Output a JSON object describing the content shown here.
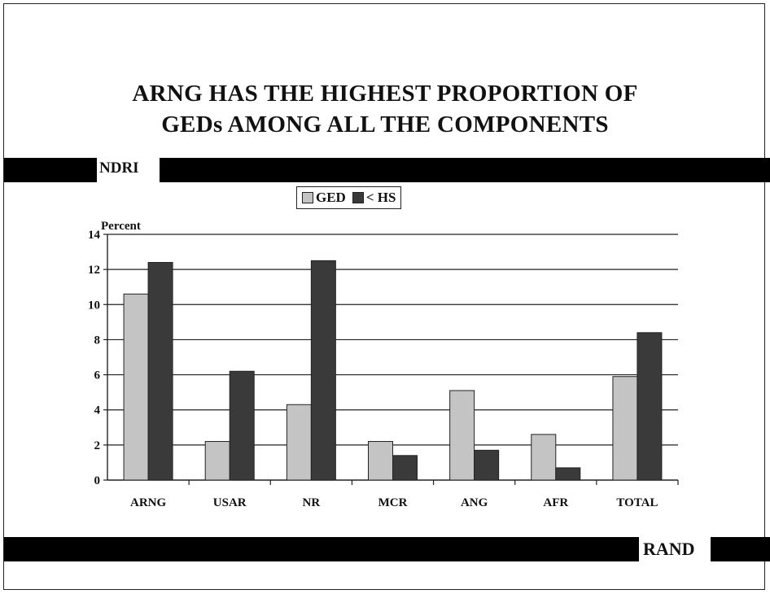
{
  "title_line1": "ARNG HAS THE HIGHEST PROPORTION OF",
  "title_line2": "GEDs AMONG ALL THE COMPONENTS",
  "header_label": "NDRI",
  "footer_label": "RAND",
  "chart_data": {
    "type": "bar",
    "ylabel": "Percent",
    "ylim": [
      0,
      14
    ],
    "yticks": [
      0,
      2,
      4,
      6,
      8,
      10,
      12,
      14
    ],
    "grid": true,
    "legend_position": "top-center",
    "categories": [
      "ARNG",
      "USAR",
      "NR",
      "MCR",
      "ANG",
      "AFR",
      "TOTAL"
    ],
    "series": [
      {
        "name": "GED",
        "color": "#c4c4c4",
        "values": [
          10.6,
          2.2,
          4.3,
          2.2,
          5.1,
          2.6,
          5.9
        ]
      },
      {
        "name": "< HS",
        "color": "#3a3a3a",
        "values": [
          12.4,
          6.2,
          12.5,
          1.4,
          1.7,
          0.7,
          8.4
        ]
      }
    ]
  }
}
